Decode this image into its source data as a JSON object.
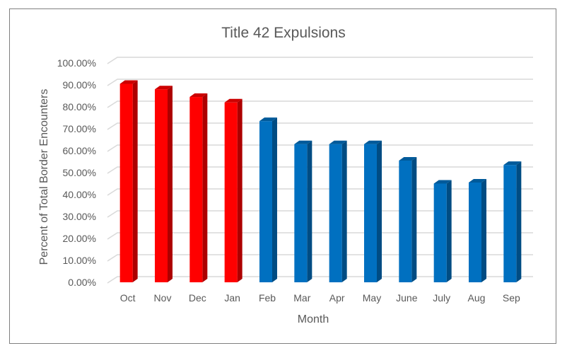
{
  "chart_data": {
    "type": "bar",
    "title": "Title 42 Expulsions",
    "xlabel": "Month",
    "ylabel": "Percent of Total Border Encounters",
    "categories": [
      "Oct",
      "Nov",
      "Dec",
      "Jan",
      "Feb",
      "Mar",
      "Apr",
      "May",
      "June",
      "July",
      "Aug",
      "Sep"
    ],
    "values": [
      90.5,
      88,
      84.5,
      82,
      73.5,
      63,
      63,
      63,
      55.5,
      45,
      45.5,
      53.5
    ],
    "bar_colors": [
      "#ff0000",
      "#ff0000",
      "#ff0000",
      "#ff0000",
      "#0070c0",
      "#0070c0",
      "#0070c0",
      "#0070c0",
      "#0070c0",
      "#0070c0",
      "#0070c0",
      "#0070c0"
    ],
    "ylim": [
      0,
      100
    ],
    "y_ticks": [
      "0.00%",
      "10.00%",
      "20.00%",
      "30.00%",
      "40.00%",
      "50.00%",
      "60.00%",
      "70.00%",
      "80.00%",
      "90.00%",
      "100.00%"
    ],
    "grid": true,
    "style": "3d-column"
  }
}
